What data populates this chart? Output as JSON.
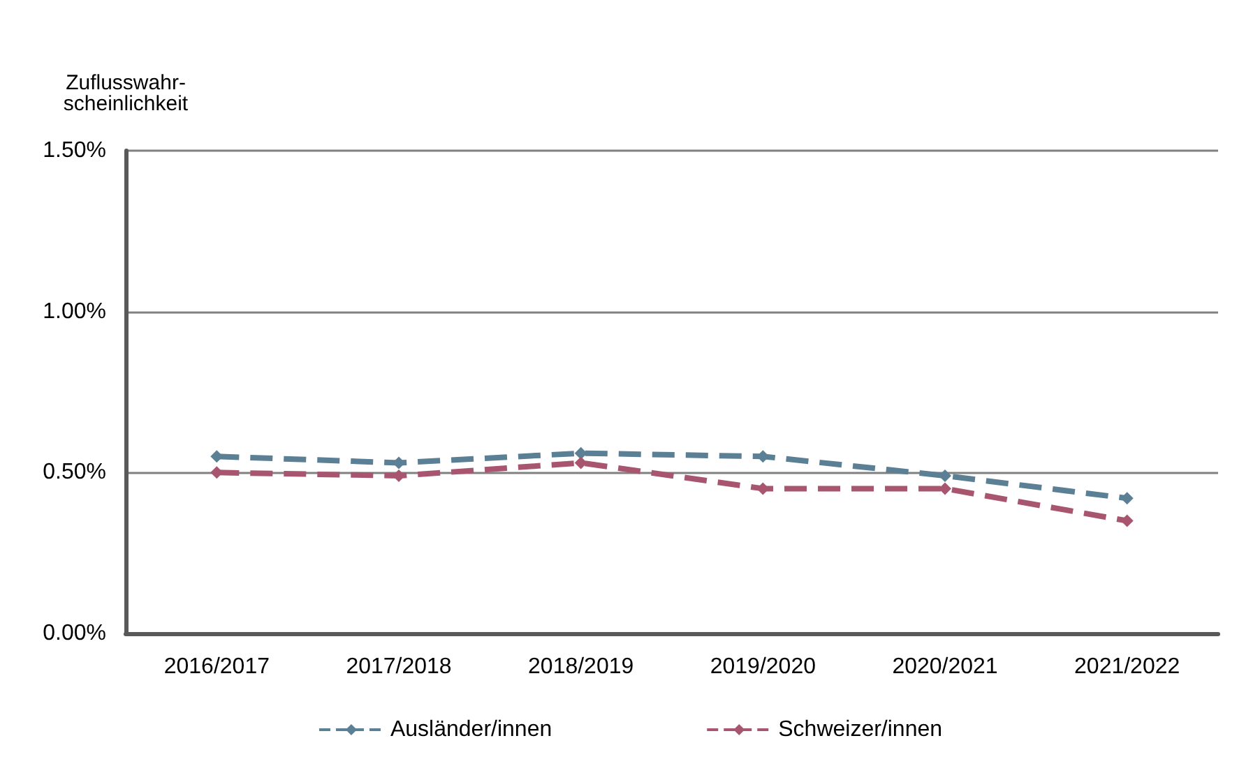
{
  "chart_data": {
    "type": "line",
    "ylabel": "Zuflusswahr-\nscheinlichkeit",
    "categories": [
      "2016/2017",
      "2017/2018",
      "2018/2019",
      "2019/2020",
      "2020/2021",
      "2021/2022"
    ],
    "series": [
      {
        "name": "Ausländer/innen",
        "color": "#5b7f95",
        "values": [
          0.55,
          0.53,
          0.56,
          0.55,
          0.49,
          0.42
        ]
      },
      {
        "name": "Schweizer/innen",
        "color": "#a8566f",
        "values": [
          0.5,
          0.49,
          0.53,
          0.45,
          0.45,
          0.35
        ]
      }
    ],
    "ylim": [
      0,
      1.5
    ],
    "yticks": [
      {
        "value": 0,
        "label": "0.00%"
      },
      {
        "value": 0.5,
        "label": "0.50%"
      },
      {
        "value": 1,
        "label": "1.00%"
      },
      {
        "value": 1.5,
        "label": "1.50%"
      }
    ],
    "grid": "y",
    "legend": "bottom",
    "marker": "diamond",
    "line_style": "dashed"
  }
}
